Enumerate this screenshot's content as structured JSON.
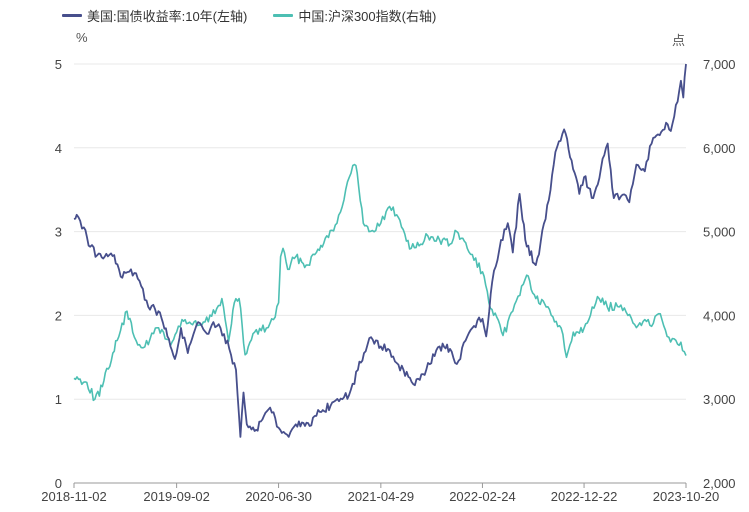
{
  "legend": [
    {
      "label": "美国:国债收益率:10年(左轴)",
      "color": "#474f8c"
    },
    {
      "label": "中国:沪深300指数(右轴)",
      "color": "#4dbfb3"
    }
  ],
  "units": {
    "left": "%",
    "right": "点"
  },
  "chart_data": {
    "type": "line",
    "title": "",
    "x_ticks": [
      "2018-11-02",
      "2019-09-02",
      "2020-06-30",
      "2021-04-29",
      "2022-02-24",
      "2022-12-22",
      "2023-10-20"
    ],
    "x_range": [
      "2018-11-02",
      "2023-10-20"
    ],
    "y_left": {
      "ticks": [
        0,
        1,
        2,
        3,
        4,
        5
      ],
      "range": [
        0,
        5
      ],
      "unit": "%"
    },
    "y_right": {
      "ticks": [
        "2,000",
        "3,000",
        "4,000",
        "5,000",
        "6,000",
        "7,000"
      ],
      "range": [
        2000,
        7000
      ],
      "unit": "点"
    },
    "grid": "horizontal",
    "series": [
      {
        "name": "美国:国债收益率:10年(左轴)",
        "axis": "left",
        "color": "#474f8c",
        "points": [
          [
            "2018-11-02",
            3.15
          ],
          [
            "2018-11-10",
            3.2
          ],
          [
            "2018-12-01",
            3.05
          ],
          [
            "2018-12-20",
            2.82
          ],
          [
            "2019-01-10",
            2.72
          ],
          [
            "2019-02-01",
            2.7
          ],
          [
            "2019-03-01",
            2.72
          ],
          [
            "2019-03-25",
            2.45
          ],
          [
            "2019-04-20",
            2.55
          ],
          [
            "2019-05-20",
            2.35
          ],
          [
            "2019-06-10",
            2.1
          ],
          [
            "2019-07-10",
            2.05
          ],
          [
            "2019-08-10",
            1.72
          ],
          [
            "2019-08-28",
            1.48
          ],
          [
            "2019-09-02",
            1.55
          ],
          [
            "2019-09-15",
            1.85
          ],
          [
            "2019-10-05",
            1.55
          ],
          [
            "2019-11-05",
            1.92
          ],
          [
            "2019-12-01",
            1.78
          ],
          [
            "2019-12-20",
            1.92
          ],
          [
            "2020-01-10",
            1.85
          ],
          [
            "2020-02-05",
            1.6
          ],
          [
            "2020-02-25",
            1.35
          ],
          [
            "2020-03-09",
            0.55
          ],
          [
            "2020-03-18",
            1.08
          ],
          [
            "2020-03-28",
            0.7
          ],
          [
            "2020-04-20",
            0.62
          ],
          [
            "2020-06-05",
            0.9
          ],
          [
            "2020-06-30",
            0.66
          ],
          [
            "2020-07-30",
            0.55
          ],
          [
            "2020-08-20",
            0.7
          ],
          [
            "2020-09-30",
            0.68
          ],
          [
            "2020-10-30",
            0.85
          ],
          [
            "2020-12-01",
            0.92
          ],
          [
            "2021-01-05",
            1.0
          ],
          [
            "2021-01-25",
            1.05
          ],
          [
            "2021-02-20",
            1.35
          ],
          [
            "2021-03-10",
            1.55
          ],
          [
            "2021-03-31",
            1.74
          ],
          [
            "2021-04-29",
            1.63
          ],
          [
            "2021-05-20",
            1.6
          ],
          [
            "2021-06-10",
            1.45
          ],
          [
            "2021-07-05",
            1.35
          ],
          [
            "2021-08-03",
            1.18
          ],
          [
            "2021-09-01",
            1.3
          ],
          [
            "2021-10-20",
            1.63
          ],
          [
            "2021-11-20",
            1.6
          ],
          [
            "2021-12-10",
            1.42
          ],
          [
            "2022-01-05",
            1.7
          ],
          [
            "2022-01-25",
            1.85
          ],
          [
            "2022-02-24",
            1.96
          ],
          [
            "2022-03-07",
            1.75
          ],
          [
            "2022-03-25",
            2.4
          ],
          [
            "2022-04-20",
            2.9
          ],
          [
            "2022-05-10",
            3.1
          ],
          [
            "2022-05-25",
            2.75
          ],
          [
            "2022-06-14",
            3.45
          ],
          [
            "2022-07-01",
            2.9
          ],
          [
            "2022-08-01",
            2.6
          ],
          [
            "2022-08-30",
            3.15
          ],
          [
            "2022-09-28",
            3.95
          ],
          [
            "2022-10-24",
            4.22
          ],
          [
            "2022-11-15",
            3.85
          ],
          [
            "2022-12-08",
            3.45
          ],
          [
            "2022-12-22",
            3.65
          ],
          [
            "2023-01-18",
            3.4
          ],
          [
            "2023-02-10",
            3.75
          ],
          [
            "2023-03-02",
            4.05
          ],
          [
            "2023-03-20",
            3.4
          ],
          [
            "2023-04-10",
            3.42
          ],
          [
            "2023-05-05",
            3.35
          ],
          [
            "2023-05-26",
            3.8
          ],
          [
            "2023-06-20",
            3.72
          ],
          [
            "2023-07-10",
            4.05
          ],
          [
            "2023-08-03",
            4.15
          ],
          [
            "2023-08-22",
            4.3
          ],
          [
            "2023-09-05",
            4.2
          ],
          [
            "2023-09-25",
            4.55
          ],
          [
            "2023-10-05",
            4.8
          ],
          [
            "2023-10-12",
            4.6
          ],
          [
            "2023-10-20",
            5.0
          ]
        ]
      },
      {
        "name": "中国:沪深300指数(右轴)",
        "axis": "right",
        "color": "#4dbfb3",
        "points": [
          [
            "2018-11-02",
            3250
          ],
          [
            "2018-11-20",
            3240
          ],
          [
            "2018-12-10",
            3200
          ],
          [
            "2019-01-03",
            3000
          ],
          [
            "2019-01-25",
            3150
          ],
          [
            "2019-02-25",
            3550
          ],
          [
            "2019-03-10",
            3700
          ],
          [
            "2019-04-08",
            4050
          ],
          [
            "2019-04-25",
            3800
          ],
          [
            "2019-05-15",
            3650
          ],
          [
            "2019-06-10",
            3650
          ],
          [
            "2019-07-01",
            3850
          ],
          [
            "2019-07-25",
            3800
          ],
          [
            "2019-08-15",
            3640
          ],
          [
            "2019-09-02",
            3800
          ],
          [
            "2019-09-18",
            3950
          ],
          [
            "2019-10-15",
            3900
          ],
          [
            "2019-11-15",
            3880
          ],
          [
            "2019-12-15",
            3990
          ],
          [
            "2020-01-14",
            4200
          ],
          [
            "2020-02-03",
            3690
          ],
          [
            "2020-02-20",
            4150
          ],
          [
            "2020-03-05",
            4200
          ],
          [
            "2020-03-23",
            3530
          ],
          [
            "2020-04-20",
            3800
          ],
          [
            "2020-05-25",
            3850
          ],
          [
            "2020-06-15",
            3950
          ],
          [
            "2020-06-30",
            4150
          ],
          [
            "2020-07-06",
            4700
          ],
          [
            "2020-07-13",
            4800
          ],
          [
            "2020-07-27",
            4550
          ],
          [
            "2020-08-20",
            4700
          ],
          [
            "2020-09-20",
            4600
          ],
          [
            "2020-10-20",
            4750
          ],
          [
            "2020-11-20",
            4950
          ],
          [
            "2020-12-20",
            5100
          ],
          [
            "2021-01-15",
            5500
          ],
          [
            "2021-02-10",
            5800
          ],
          [
            "2021-02-18",
            5700
          ],
          [
            "2021-03-08",
            5100
          ],
          [
            "2021-03-25",
            5000
          ],
          [
            "2021-04-29",
            5100
          ],
          [
            "2021-05-25",
            5300
          ],
          [
            "2021-06-15",
            5200
          ],
          [
            "2021-07-28",
            4800
          ],
          [
            "2021-08-25",
            4850
          ],
          [
            "2021-09-15",
            4950
          ],
          [
            "2021-10-20",
            4900
          ],
          [
            "2021-11-20",
            4850
          ],
          [
            "2021-12-10",
            5000
          ],
          [
            "2022-01-10",
            4800
          ],
          [
            "2022-02-24",
            4520
          ],
          [
            "2022-03-15",
            4150
          ],
          [
            "2022-04-26",
            3760
          ],
          [
            "2022-05-25",
            4050
          ],
          [
            "2022-06-20",
            4350
          ],
          [
            "2022-07-05",
            4480
          ],
          [
            "2022-08-01",
            4200
          ],
          [
            "2022-09-01",
            4100
          ],
          [
            "2022-10-15",
            3850
          ],
          [
            "2022-10-31",
            3500
          ],
          [
            "2022-11-20",
            3800
          ],
          [
            "2022-12-22",
            3850
          ],
          [
            "2023-01-15",
            4100
          ],
          [
            "2023-02-05",
            4200
          ],
          [
            "2023-03-01",
            4100
          ],
          [
            "2023-04-05",
            4100
          ],
          [
            "2023-05-01",
            4000
          ],
          [
            "2023-05-31",
            3880
          ],
          [
            "2023-06-20",
            3950
          ],
          [
            "2023-07-10",
            3870
          ],
          [
            "2023-07-31",
            4020
          ],
          [
            "2023-08-25",
            3750
          ],
          [
            "2023-09-15",
            3720
          ],
          [
            "2023-10-05",
            3680
          ],
          [
            "2023-10-20",
            3520
          ]
        ]
      }
    ]
  }
}
